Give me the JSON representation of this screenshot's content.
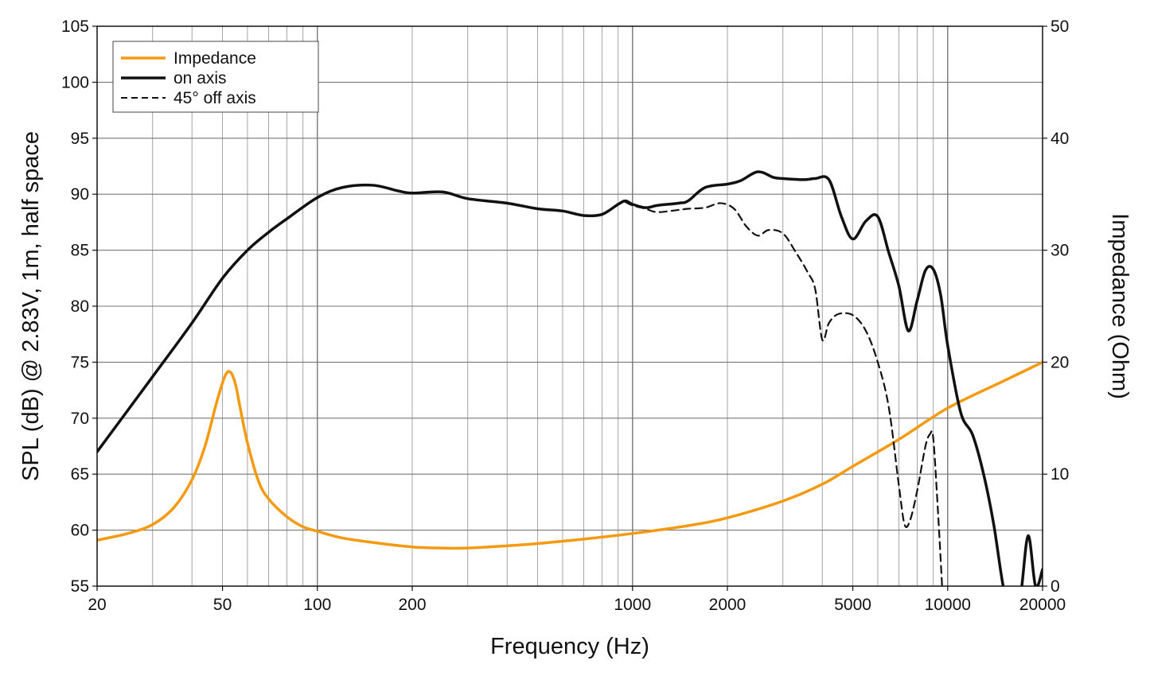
{
  "chart_data": {
    "type": "line",
    "x_scale": "log",
    "xlim": [
      20,
      20000
    ],
    "ylim_left": [
      55,
      105
    ],
    "ylim_right": [
      0,
      50
    ],
    "grid": true,
    "legend_position": "top-left",
    "xlabel": "Frequency (Hz)",
    "ylabel_left": "SPL (dB) @ 2.83V, 1m, half space",
    "ylabel_right": "Impedance (Ohm)",
    "x_ticks": [
      20,
      50,
      100,
      200,
      1000,
      2000,
      5000,
      10000,
      20000
    ],
    "x_tick_labels": [
      "20",
      "50",
      "100",
      "200",
      "1000",
      "2000",
      "5000",
      "10000",
      "20000"
    ],
    "y_left_ticks": [
      55,
      60,
      65,
      70,
      75,
      80,
      85,
      90,
      95,
      100,
      105
    ],
    "y_left_tick_labels": [
      "55",
      "60",
      "65",
      "70",
      "75",
      "80",
      "85",
      "90",
      "95",
      "100",
      "105"
    ],
    "y_right_ticks": [
      0,
      10,
      20,
      30,
      40,
      50
    ],
    "y_right_tick_labels": [
      "0",
      "10",
      "20",
      "30",
      "40",
      "50"
    ],
    "series": [
      {
        "name": "Impedance",
        "axis": "right",
        "color": "#f39a12",
        "style": "solid",
        "x": [
          20,
          25,
          30,
          35,
          40,
          44,
          48,
          51,
          53,
          55,
          57,
          60,
          65,
          70,
          80,
          90,
          100,
          120,
          150,
          200,
          250,
          300,
          400,
          500,
          700,
          1000,
          1500,
          2000,
          3000,
          4000,
          5000,
          7000,
          10000,
          15000,
          20000
        ],
        "values": [
          4.1,
          4.7,
          5.5,
          7.0,
          9.5,
          12.5,
          16.5,
          18.8,
          19.1,
          18.0,
          15.8,
          12.8,
          9.4,
          7.8,
          6.2,
          5.3,
          4.9,
          4.3,
          3.9,
          3.5,
          3.4,
          3.4,
          3.6,
          3.8,
          4.2,
          4.7,
          5.4,
          6.1,
          7.6,
          9.1,
          10.7,
          13.1,
          15.9,
          18.3,
          20.0
        ]
      },
      {
        "name": "on axis",
        "axis": "left",
        "color": "#111111",
        "style": "solid",
        "x": [
          20,
          30,
          40,
          50,
          60,
          70,
          80,
          100,
          120,
          150,
          180,
          200,
          250,
          300,
          400,
          500,
          600,
          700,
          800,
          900,
          950,
          1000,
          1100,
          1200,
          1400,
          1500,
          1700,
          2000,
          2200,
          2500,
          2800,
          3000,
          3500,
          3800,
          4200,
          4600,
          5000,
          5500,
          6000,
          6500,
          7000,
          7500,
          8000,
          8500,
          9000,
          9500,
          10000,
          11000,
          12000,
          13000,
          14000,
          15000,
          16000,
          17000,
          18000,
          19000,
          20000
        ],
        "values": [
          67.0,
          73.7,
          78.5,
          82.5,
          85.0,
          86.6,
          87.8,
          89.7,
          90.6,
          90.8,
          90.3,
          90.1,
          90.2,
          89.6,
          89.2,
          88.7,
          88.5,
          88.1,
          88.2,
          89.1,
          89.4,
          89.1,
          88.8,
          89.0,
          89.2,
          89.4,
          90.6,
          90.9,
          91.2,
          92.0,
          91.5,
          91.4,
          91.3,
          91.4,
          91.3,
          88.0,
          86.0,
          87.6,
          88.0,
          84.8,
          81.8,
          77.8,
          80.5,
          83.2,
          83.3,
          81.0,
          76.5,
          70.5,
          68.5,
          65.0,
          60.5,
          55.0,
          52.0,
          54.0,
          59.5,
          55.0,
          56.5
        ]
      },
      {
        "name": "45° off axis",
        "axis": "left",
        "color": "#111111",
        "style": "dashed",
        "x": [
          950,
          1000,
          1100,
          1200,
          1400,
          1500,
          1700,
          1900,
          2100,
          2300,
          2500,
          2700,
          3000,
          3300,
          3600,
          3800,
          4000,
          4200,
          4500,
          5000,
          5500,
          6000,
          6500,
          7000,
          7300,
          7600,
          8000,
          8500,
          8800,
          9000,
          9300,
          9600
        ],
        "values": [
          89.3,
          89.0,
          88.7,
          88.4,
          88.6,
          88.7,
          88.8,
          89.2,
          88.7,
          87.1,
          86.3,
          86.8,
          86.5,
          84.8,
          83.0,
          81.5,
          77.0,
          78.5,
          79.3,
          79.2,
          77.8,
          75.0,
          71.0,
          64.0,
          60.5,
          60.9,
          63.5,
          67.5,
          68.6,
          68.2,
          62.0,
          55.0
        ]
      }
    ]
  }
}
